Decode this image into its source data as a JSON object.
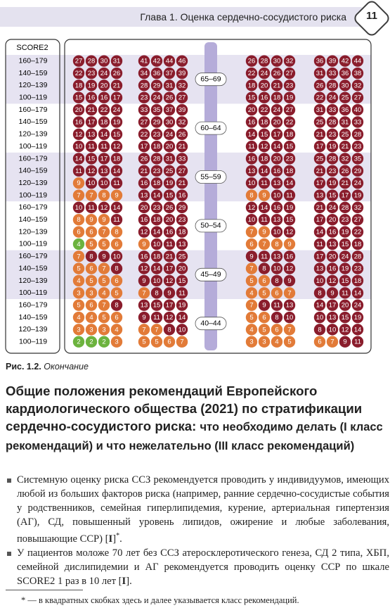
{
  "header": {
    "chapter": "Глава 1. Оценка сердечно-сосудистого риска",
    "page": "11"
  },
  "chart": {
    "label": "SCORE2",
    "cell_colors": {
      "low": "#6cb33e",
      "moderate": "#e27b38",
      "high": "#8a1d2c"
    },
    "age_groups": [
      {
        "age": "65–69",
        "rows": [
          {
            "sbp": "160–179",
            "values": [
              27,
              28,
              30,
              31,
              41,
              42,
              44,
              46,
              26,
              28,
              30,
              32,
              36,
              39,
              42,
              44
            ]
          },
          {
            "sbp": "140–159",
            "values": [
              22,
              23,
              24,
              26,
              34,
              36,
              37,
              39,
              22,
              24,
              26,
              27,
              31,
              33,
              36,
              38
            ]
          },
          {
            "sbp": "120–139",
            "values": [
              18,
              19,
              20,
              21,
              28,
              29,
              31,
              32,
              18,
              20,
              21,
              23,
              26,
              28,
              30,
              32
            ]
          },
          {
            "sbp": "100–119",
            "values": [
              15,
              16,
              16,
              17,
              23,
              24,
              26,
              27,
              15,
              16,
              18,
              19,
              22,
              24,
              25,
              27
            ]
          }
        ]
      },
      {
        "age": "60–64",
        "rows": [
          {
            "sbp": "160–179",
            "values": [
              20,
              21,
              22,
              24,
              33,
              35,
              37,
              39,
              20,
              22,
              24,
              27,
              31,
              33,
              36,
              40
            ]
          },
          {
            "sbp": "140–159",
            "values": [
              16,
              17,
              18,
              19,
              27,
              29,
              30,
              32,
              16,
              18,
              20,
              22,
              25,
              28,
              31,
              33
            ]
          },
          {
            "sbp": "120–139",
            "values": [
              12,
              13,
              14,
              15,
              22,
              23,
              24,
              26,
              14,
              15,
              17,
              18,
              21,
              23,
              25,
              28
            ]
          },
          {
            "sbp": "100–119",
            "values": [
              10,
              11,
              11,
              12,
              17,
              18,
              20,
              21,
              11,
              12,
              14,
              15,
              17,
              19,
              21,
              23
            ]
          }
        ]
      },
      {
        "age": "55–59",
        "rows": [
          {
            "sbp": "160–179",
            "values": [
              14,
              15,
              17,
              18,
              26,
              28,
              31,
              33,
              16,
              18,
              20,
              23,
              25,
              28,
              32,
              35
            ]
          },
          {
            "sbp": "140–159",
            "values": [
              11,
              12,
              13,
              14,
              21,
              23,
              25,
              27,
              13,
              14,
              16,
              18,
              21,
              23,
              26,
              29
            ]
          },
          {
            "sbp": "120–139",
            "values": [
              9,
              10,
              10,
              11,
              16,
              18,
              19,
              21,
              10,
              11,
              13,
              14,
              17,
              19,
              21,
              24
            ]
          },
          {
            "sbp": "100–119",
            "values": [
              7,
              7,
              8,
              9,
              13,
              14,
              15,
              16,
              8,
              9,
              10,
              11,
              13,
              15,
              17,
              19
            ]
          }
        ]
      },
      {
        "age": "50–54",
        "rows": [
          {
            "sbp": "160–179",
            "values": [
              10,
              11,
              12,
              14,
              20,
              23,
              26,
              29,
              12,
              14,
              16,
              19,
              21,
              24,
              28,
              32
            ]
          },
          {
            "sbp": "140–159",
            "values": [
              8,
              9,
              9,
              11,
              16,
              18,
              20,
              23,
              10,
              11,
              13,
              15,
              17,
              20,
              23,
              27
            ]
          },
          {
            "sbp": "120–139",
            "values": [
              6,
              6,
              7,
              8,
              12,
              14,
              16,
              18,
              7,
              9,
              10,
              12,
              14,
              16,
              19,
              22
            ]
          },
          {
            "sbp": "100–119",
            "values": [
              4,
              5,
              5,
              6,
              9,
              10,
              11,
              13,
              6,
              7,
              8,
              9,
              11,
              13,
              15,
              18
            ]
          }
        ]
      },
      {
        "age": "45–49",
        "rows": [
          {
            "sbp": "160–179",
            "values": [
              7,
              8,
              9,
              10,
              16,
              18,
              21,
              25,
              9,
              11,
              13,
              16,
              17,
              20,
              24,
              28
            ]
          },
          {
            "sbp": "140–159",
            "values": [
              5,
              6,
              7,
              8,
              12,
              14,
              17,
              20,
              7,
              8,
              10,
              12,
              13,
              16,
              19,
              23
            ]
          },
          {
            "sbp": "120–139",
            "values": [
              4,
              5,
              5,
              6,
              9,
              10,
              12,
              15,
              5,
              6,
              8,
              9,
              10,
              12,
              15,
              18
            ]
          },
          {
            "sbp": "100–119",
            "values": [
              3,
              3,
              4,
              5,
              7,
              8,
              9,
              11,
              4,
              5,
              6,
              7,
              8,
              9,
              11,
              14
            ]
          }
        ]
      },
      {
        "age": "40–44",
        "rows": [
          {
            "sbp": "160–179",
            "values": [
              5,
              6,
              7,
              8,
              13,
              15,
              17,
              19,
              7,
              9,
              11,
              13,
              14,
              17,
              20,
              24
            ]
          },
          {
            "sbp": "140–159",
            "values": [
              4,
              4,
              5,
              6,
              9,
              11,
              12,
              14,
              5,
              6,
              8,
              10,
              10,
              13,
              15,
              19
            ]
          },
          {
            "sbp": "120–139",
            "values": [
              3,
              3,
              3,
              4,
              7,
              7,
              8,
              10,
              4,
              5,
              6,
              7,
              8,
              10,
              12,
              14
            ]
          },
          {
            "sbp": "100–119",
            "values": [
              2,
              2,
              2,
              3,
              5,
              5,
              6,
              7,
              3,
              3,
              4,
              5,
              6,
              7,
              9,
              11
            ]
          }
        ]
      }
    ]
  },
  "caption": {
    "number": "Рис. 1.2.",
    "text": "Окончание"
  },
  "heading": {
    "bold": "Общие положения рекомендаций Европейского кардиологического общества (2021) по стратификации сердечно-сосудистого риска:",
    "rest": "что необходимо делать (I класс рекомендаций) и что нежелательно (III класс рекомендаций)"
  },
  "bullets": [
    [
      "Системную оценку риска ССЗ рекомендуется проводить у индивидуумов, имеющих любой из больших факторов риска (например, ранние сердечно-сосудистые события у родственников, семейная гиперлипидемия, курение, артериальная гипертензия (АГ), СД, повышенный уровень липидов, ожирение и любые заболевания, повышающие ССР) [",
      "I",
      "]",
      "*",
      "."
    ],
    [
      "У пациентов моложе 70 лет без ССЗ атеросклеротического генеза, СД 2 типа, ХБП, семейной дислипидемии и АГ рекомендуется проводить оценку ССР по шкале SCORE2 1 раз в 10 лет [",
      "I",
      "]."
    ]
  ],
  "footnote": "* — в квадратных скобках здесь и далее указывается класс рекомендаций."
}
